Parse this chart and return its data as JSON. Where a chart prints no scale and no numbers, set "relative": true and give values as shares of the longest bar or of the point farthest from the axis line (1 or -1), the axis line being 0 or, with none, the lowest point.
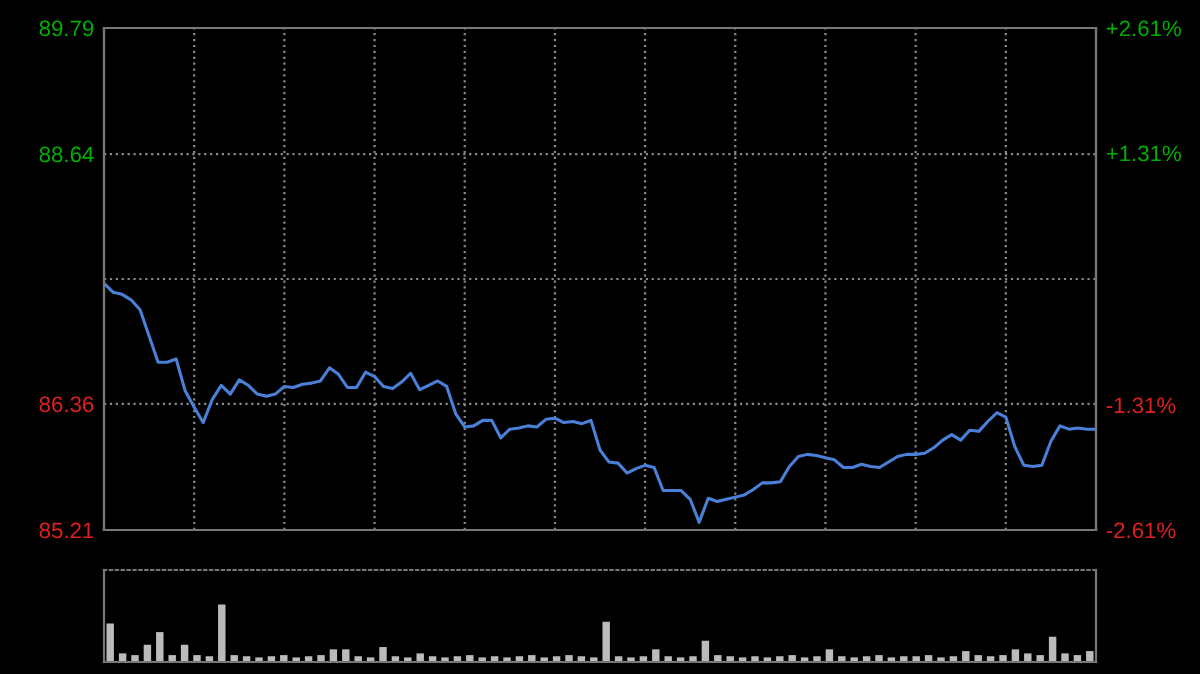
{
  "chart_data": [
    {
      "type": "line",
      "categories": [
        null,
        null,
        null,
        null,
        null,
        null,
        null,
        null,
        null,
        null,
        null,
        null,
        null,
        null,
        null,
        null,
        null,
        null,
        null,
        null,
        null,
        null,
        null,
        null,
        null,
        null,
        null,
        null,
        null,
        null,
        null,
        null,
        null,
        null,
        null,
        null,
        null,
        null,
        null,
        null,
        null,
        null,
        null,
        null,
        null,
        null,
        null,
        null,
        null,
        null,
        null,
        null,
        null,
        null,
        null,
        null,
        null,
        null,
        null,
        null,
        null,
        null,
        null,
        null,
        null,
        null,
        null,
        null,
        null,
        null,
        null,
        null,
        null,
        null,
        null,
        null,
        null,
        null,
        null,
        null,
        null,
        null,
        null,
        null,
        null,
        null,
        null,
        null,
        null,
        null,
        null,
        null,
        null,
        null,
        null,
        null,
        null,
        null,
        null,
        null,
        null,
        null,
        null,
        null,
        null,
        null,
        null,
        null,
        null,
        null,
        null
      ],
      "series": [
        {
          "color": "#4a80d8",
          "values": [
            87.46,
            87.38,
            87.36,
            87.31,
            87.22,
            86.98,
            86.74,
            86.74,
            86.77,
            86.48,
            86.33,
            86.19,
            86.4,
            86.53,
            86.45,
            86.58,
            86.53,
            86.45,
            86.43,
            86.45,
            86.52,
            86.51,
            86.54,
            86.55,
            86.57,
            86.69,
            86.63,
            86.51,
            86.51,
            86.65,
            86.61,
            86.52,
            86.5,
            86.56,
            86.64,
            86.49,
            86.53,
            86.57,
            86.52,
            86.27,
            86.15,
            86.16,
            86.21,
            86.21,
            86.05,
            86.13,
            86.14,
            86.16,
            86.15,
            86.22,
            86.23,
            86.19,
            86.2,
            86.18,
            86.21,
            85.94,
            85.83,
            85.82,
            85.73,
            85.77,
            85.8,
            85.78,
            85.57,
            85.57,
            85.57,
            85.49,
            85.28,
            85.5,
            85.47,
            85.49,
            85.51,
            85.53,
            85.58,
            85.64,
            85.64,
            85.65,
            85.79,
            85.88,
            85.9,
            85.89,
            85.87,
            85.85,
            85.78,
            85.78,
            85.81,
            85.79,
            85.78,
            85.83,
            85.88,
            85.9,
            85.9,
            85.91,
            85.96,
            86.03,
            86.08,
            86.03,
            86.12,
            86.11,
            86.2,
            86.28,
            86.24,
            85.97,
            85.8,
            85.79,
            85.8,
            86.02,
            86.16,
            86.13,
            86.14,
            86.13,
            86.13
          ]
        }
      ],
      "ylim": [
        85.21,
        89.79
      ],
      "yticks": [
        85.21,
        86.36,
        {
          "value": 87.5,
          "label": null
        },
        88.64,
        89.79
      ],
      "y2lim": [
        -2.61,
        2.61
      ],
      "y2ticks": [
        {
          "value": -2.61,
          "label": "-2.61%"
        },
        {
          "value": -1.31,
          "label": "-1.31%"
        },
        {
          "value": 0,
          "label": null
        },
        {
          "value": 1.31,
          "label": "+1.31%"
        },
        {
          "value": 2.61,
          "label": "+2.61%"
        }
      ],
      "grid": true,
      "tick_labels": "y"
    },
    {
      "type": "bar",
      "relative": true,
      "tick_labels": false,
      "color": "#bbbbbb",
      "categories": [
        null,
        null,
        null,
        null,
        null,
        null,
        null,
        null,
        null,
        null,
        null,
        null,
        null,
        null,
        null,
        null,
        null,
        null,
        null,
        null,
        null,
        null,
        null,
        null,
        null,
        null,
        null,
        null,
        null,
        null,
        null,
        null,
        null,
        null,
        null,
        null,
        null,
        null,
        null,
        null,
        null,
        null,
        null,
        null,
        null,
        null,
        null,
        null,
        null,
        null,
        null,
        null,
        null,
        null,
        null,
        null,
        null,
        null,
        null,
        null,
        null,
        null,
        null,
        null,
        null,
        null,
        null,
        null,
        null,
        null,
        null,
        null,
        null,
        null,
        null,
        null,
        null,
        null,
        null,
        null
      ],
      "values": [
        0.67,
        0.15,
        0.12,
        0.3,
        0.52,
        0.12,
        0.3,
        0.12,
        0.1,
        1,
        0.12,
        0.1,
        0.08,
        0.1,
        0.12,
        0.08,
        0.1,
        0.12,
        0.22,
        0.22,
        0.1,
        0.08,
        0.26,
        0.1,
        0.08,
        0.15,
        0.1,
        0.08,
        0.1,
        0.12,
        0.08,
        0.1,
        0.08,
        0.1,
        0.12,
        0.08,
        0.1,
        0.12,
        0.1,
        0.08,
        0.7,
        0.1,
        0.08,
        0.1,
        0.22,
        0.1,
        0.08,
        0.1,
        0.37,
        0.12,
        0.1,
        0.08,
        0.1,
        0.08,
        0.1,
        0.12,
        0.08,
        0.1,
        0.22,
        0.1,
        0.08,
        0.1,
        0.12,
        0.08,
        0.1,
        0.1,
        0.12,
        0.08,
        0.1,
        0.19,
        0.12,
        0.1,
        0.12,
        0.22,
        0.15,
        0.12,
        0.44,
        0.15,
        0.12,
        0.19
      ]
    }
  ]
}
